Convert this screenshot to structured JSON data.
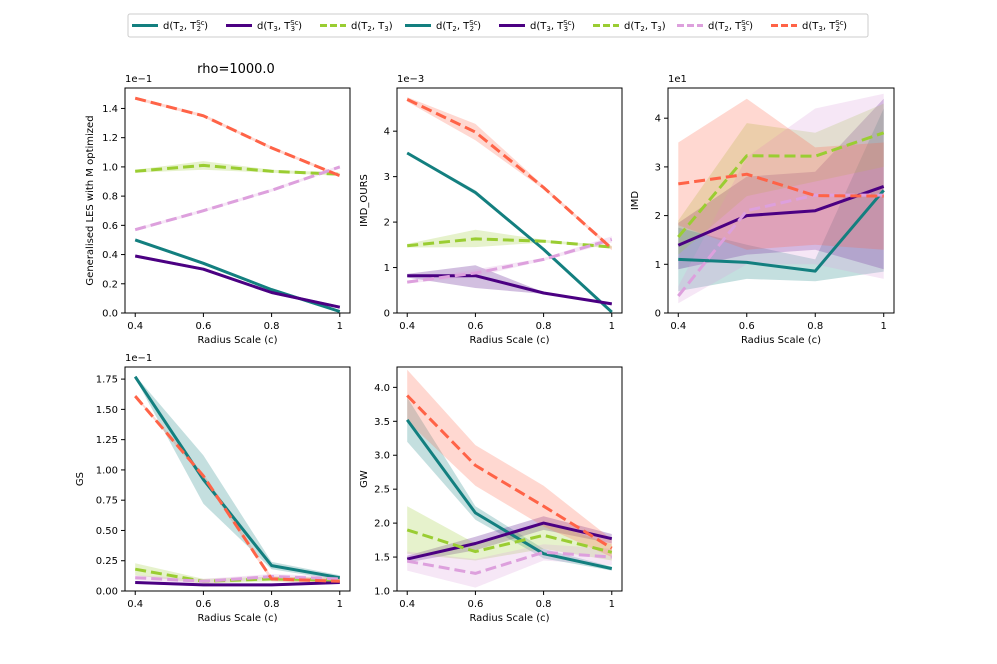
{
  "figure": {
    "suptitle": "rho=1000.0",
    "legend": [
      {
        "label_main": "d(T",
        "sub1": "2",
        "mid": ", T",
        "sub2": "2",
        "sup2": "Sc",
        "end": ")",
        "color": "#137f7f",
        "dash": "solid"
      },
      {
        "label_main": "d(T",
        "sub1": "3",
        "mid": ", T",
        "sub2": "3",
        "sup2": "Sc",
        "end": ")",
        "color": "#4b0082",
        "dash": "solid"
      },
      {
        "label_main": "d(T",
        "sub1": "2",
        "mid": ", T",
        "sub2": "3",
        "sup2": "",
        "end": ")",
        "color": "#9acd32",
        "dash": "dashed"
      },
      {
        "label_main": "d(T",
        "sub1": "2",
        "mid": ", T",
        "sub2": "2",
        "sup2": "Sc",
        "end": ")",
        "color": "#137f7f",
        "dash": "solid"
      },
      {
        "label_main": "d(T",
        "sub1": "3",
        "mid": ", T",
        "sub2": "3",
        "sup2": "Sc",
        "end": ")",
        "color": "#4b0082",
        "dash": "solid"
      },
      {
        "label_main": "d(T",
        "sub1": "2",
        "mid": ", T",
        "sub2": "3",
        "sup2": "",
        "end": ")",
        "color": "#9acd32",
        "dash": "dashed"
      },
      {
        "label_main": "d(T",
        "sub1": "2",
        "mid": ", T",
        "sub2": "3",
        "sup2": "Sc",
        "end": ")",
        "color": "#dda0dd",
        "dash": "dashed"
      },
      {
        "label_main": "d(T",
        "sub1": "3",
        "mid": ", T",
        "sub2": "2",
        "sup2": "Sc",
        "end": ")",
        "color": "#ff6347",
        "dash": "dashed"
      }
    ]
  },
  "chart_data": [
    {
      "type": "line",
      "ylabel": "Generalised LES with M optimized",
      "xlabel": "Radius Scale (c)",
      "exponent": "1e−1",
      "x": [
        0.4,
        0.6,
        0.8,
        1.0
      ],
      "xticks": [
        "0.4",
        "0.6",
        "0.8",
        "1"
      ],
      "ylim": [
        0,
        1.54
      ],
      "yticks": [
        0,
        0.2,
        0.4,
        0.6,
        0.8,
        1.0,
        1.2,
        1.4
      ],
      "ytick_labels": [
        "0.0",
        "0.2",
        "0.4",
        "0.6",
        "0.8",
        "1.0",
        "1.2",
        "1.4"
      ],
      "series": [
        {
          "name": "d(T2,T2Sc)",
          "color": "#137f7f",
          "dash": "solid",
          "values": [
            0.5,
            0.34,
            0.16,
            0.01
          ],
          "lower": [
            0.49,
            0.33,
            0.15,
            0.0
          ],
          "upper": [
            0.51,
            0.35,
            0.17,
            0.02
          ]
        },
        {
          "name": "d(T3,T3Sc)",
          "color": "#4b0082",
          "dash": "solid",
          "values": [
            0.39,
            0.3,
            0.14,
            0.04
          ],
          "lower": [
            0.38,
            0.29,
            0.13,
            0.03
          ],
          "upper": [
            0.4,
            0.31,
            0.15,
            0.05
          ]
        },
        {
          "name": "d(T2,T3)",
          "color": "#9acd32",
          "dash": "dashed",
          "values": [
            0.97,
            1.01,
            0.97,
            0.95
          ],
          "lower": [
            0.96,
            0.98,
            0.96,
            0.94
          ],
          "upper": [
            0.98,
            1.04,
            0.98,
            0.96
          ]
        },
        {
          "name": "d(T2,T3Sc)",
          "color": "#dda0dd",
          "dash": "dashed",
          "values": [
            0.57,
            0.7,
            0.84,
            1.0
          ],
          "lower": [
            0.56,
            0.69,
            0.83,
            0.99
          ],
          "upper": [
            0.58,
            0.71,
            0.85,
            1.01
          ]
        },
        {
          "name": "d(T3,T2Sc)",
          "color": "#ff6347",
          "dash": "dashed",
          "values": [
            1.47,
            1.35,
            1.13,
            0.94
          ],
          "lower": [
            1.46,
            1.34,
            1.12,
            0.93
          ],
          "upper": [
            1.48,
            1.36,
            1.14,
            0.95
          ]
        }
      ]
    },
    {
      "type": "line",
      "ylabel": "IMD_OURS",
      "xlabel": "Radius Scale (c)",
      "exponent": "1e−3",
      "x": [
        0.4,
        0.6,
        0.8,
        1.0
      ],
      "xticks": [
        "0.4",
        "0.6",
        "0.8",
        "1"
      ],
      "ylim": [
        0,
        4.95
      ],
      "yticks": [
        0,
        1,
        2,
        3,
        4
      ],
      "ytick_labels": [
        "0",
        "1",
        "2",
        "3",
        "4"
      ],
      "series": [
        {
          "name": "d(T2,T2Sc)",
          "color": "#137f7f",
          "dash": "solid",
          "values": [
            3.52,
            2.65,
            1.4,
            0.02
          ],
          "lower": [
            3.5,
            2.6,
            1.38,
            0.0
          ],
          "upper": [
            3.54,
            2.7,
            1.42,
            0.04
          ]
        },
        {
          "name": "d(T3,T3Sc)",
          "color": "#4b0082",
          "dash": "solid",
          "values": [
            0.82,
            0.82,
            0.44,
            0.2
          ],
          "lower": [
            0.78,
            0.55,
            0.42,
            0.18
          ],
          "upper": [
            0.86,
            1.05,
            0.46,
            0.22
          ]
        },
        {
          "name": "d(T2,T3)",
          "color": "#9acd32",
          "dash": "dashed",
          "values": [
            1.48,
            1.63,
            1.58,
            1.45
          ],
          "lower": [
            1.44,
            1.45,
            1.55,
            1.42
          ],
          "upper": [
            1.52,
            1.83,
            1.61,
            1.48
          ]
        },
        {
          "name": "d(T2,T3Sc)",
          "color": "#dda0dd",
          "dash": "dashed",
          "values": [
            0.68,
            0.88,
            1.18,
            1.62
          ],
          "lower": [
            0.65,
            0.8,
            1.15,
            1.55
          ],
          "upper": [
            0.71,
            0.96,
            1.21,
            1.69
          ]
        },
        {
          "name": "d(T3,T2Sc)",
          "color": "#ff6347",
          "dash": "dashed",
          "values": [
            4.7,
            3.98,
            2.76,
            1.42
          ],
          "lower": [
            4.65,
            3.8,
            2.72,
            1.38
          ],
          "upper": [
            4.75,
            4.16,
            2.8,
            1.46
          ]
        }
      ]
    },
    {
      "type": "line",
      "ylabel": "IMD",
      "xlabel": "Radius Scale (c)",
      "exponent": "1e1",
      "x": [
        0.4,
        0.6,
        0.8,
        1.0
      ],
      "xticks": [
        "0.4",
        "0.6",
        "0.8",
        "1"
      ],
      "ylim": [
        0,
        4.62
      ],
      "yticks": [
        0,
        1,
        2,
        3,
        4
      ],
      "ytick_labels": [
        "0",
        "1",
        "2",
        "3",
        "4"
      ],
      "series": [
        {
          "name": "d(T2,T2Sc)",
          "color": "#137f7f",
          "dash": "solid",
          "values": [
            1.1,
            1.04,
            0.86,
            2.52
          ],
          "lower": [
            0.45,
            0.7,
            0.65,
            0.85
          ],
          "upper": [
            1.75,
            1.4,
            1.1,
            4.2
          ]
        },
        {
          "name": "d(T3,T3Sc)",
          "color": "#4b0082",
          "dash": "solid",
          "values": [
            1.39,
            2.0,
            2.1,
            2.6
          ],
          "lower": [
            0.9,
            1.2,
            1.3,
            0.9
          ],
          "upper": [
            1.85,
            2.8,
            2.9,
            4.4
          ]
        },
        {
          "name": "d(T2,T3)",
          "color": "#9acd32",
          "dash": "dashed",
          "values": [
            1.56,
            3.23,
            3.22,
            3.7
          ],
          "lower": [
            1.2,
            2.4,
            2.7,
            3.0
          ],
          "upper": [
            1.9,
            3.9,
            3.7,
            4.3
          ]
        },
        {
          "name": "d(T2,T3Sc)",
          "color": "#dda0dd",
          "dash": "dashed",
          "values": [
            0.35,
            2.1,
            2.42,
            2.42
          ],
          "lower": [
            0.2,
            1.0,
            1.0,
            0.7
          ],
          "upper": [
            0.55,
            3.2,
            4.2,
            4.5
          ]
        },
        {
          "name": "d(T3,T2Sc)",
          "color": "#ff6347",
          "dash": "dashed",
          "values": [
            2.65,
            2.85,
            2.41,
            2.4
          ],
          "lower": [
            1.8,
            1.3,
            1.4,
            1.3
          ],
          "upper": [
            3.5,
            4.4,
            3.4,
            3.5
          ]
        }
      ]
    },
    {
      "type": "line",
      "ylabel": "GS",
      "xlabel": "Radius Scale (c)",
      "exponent": "1e−1",
      "x": [
        0.4,
        0.6,
        0.8,
        1.0
      ],
      "xticks": [
        "0.4",
        "0.6",
        "0.8",
        "1"
      ],
      "ylim": [
        0,
        1.85
      ],
      "yticks": [
        0,
        0.25,
        0.5,
        0.75,
        1.0,
        1.25,
        1.5,
        1.75
      ],
      "ytick_labels": [
        "0.00",
        "0.25",
        "0.50",
        "0.75",
        "1.00",
        "1.25",
        "1.50",
        "1.75"
      ],
      "series": [
        {
          "name": "d(T2,T2Sc)",
          "color": "#137f7f",
          "dash": "solid",
          "values": [
            1.77,
            0.92,
            0.21,
            0.11
          ],
          "lower": [
            1.76,
            0.72,
            0.18,
            0.09
          ],
          "upper": [
            1.78,
            1.12,
            0.24,
            0.13
          ]
        },
        {
          "name": "d(T3,T3Sc)",
          "color": "#4b0082",
          "dash": "solid",
          "values": [
            0.07,
            0.05,
            0.05,
            0.07
          ],
          "lower": [
            0.06,
            0.04,
            0.04,
            0.06
          ],
          "upper": [
            0.08,
            0.06,
            0.06,
            0.08
          ]
        },
        {
          "name": "d(T2,T3)",
          "color": "#9acd32",
          "dash": "dashed",
          "values": [
            0.18,
            0.08,
            0.1,
            0.09
          ],
          "lower": [
            0.13,
            0.06,
            0.08,
            0.07
          ],
          "upper": [
            0.23,
            0.1,
            0.12,
            0.11
          ]
        },
        {
          "name": "d(T2,T3Sc)",
          "color": "#dda0dd",
          "dash": "dashed",
          "values": [
            0.11,
            0.08,
            0.12,
            0.1
          ],
          "lower": [
            0.09,
            0.06,
            0.1,
            0.08
          ],
          "upper": [
            0.13,
            0.1,
            0.14,
            0.12
          ]
        },
        {
          "name": "d(T3,T2Sc)",
          "color": "#ff6347",
          "dash": "dashed",
          "values": [
            1.61,
            0.95,
            0.1,
            0.08
          ],
          "lower": [
            1.6,
            0.93,
            0.08,
            0.06
          ],
          "upper": [
            1.62,
            0.97,
            0.12,
            0.1
          ]
        }
      ]
    },
    {
      "type": "line",
      "ylabel": "GW",
      "xlabel": "Radius Scale (c)",
      "exponent": "",
      "x": [
        0.4,
        0.6,
        0.8,
        1.0
      ],
      "xticks": [
        "0.4",
        "0.6",
        "0.8",
        "1"
      ],
      "ylim": [
        1.0,
        4.3
      ],
      "yticks": [
        1.0,
        1.5,
        2.0,
        2.5,
        3.0,
        3.5,
        4.0
      ],
      "ytick_labels": [
        "1.0",
        "1.5",
        "2.0",
        "2.5",
        "3.0",
        "3.5",
        "4.0"
      ],
      "series": [
        {
          "name": "d(T2,T2Sc)",
          "color": "#137f7f",
          "dash": "solid",
          "values": [
            3.52,
            2.15,
            1.55,
            1.33
          ],
          "lower": [
            3.2,
            2.05,
            1.48,
            1.3
          ],
          "upper": [
            3.85,
            2.25,
            1.62,
            1.36
          ]
        },
        {
          "name": "d(T3,T3Sc)",
          "color": "#4b0082",
          "dash": "solid",
          "values": [
            1.47,
            1.7,
            2.0,
            1.77
          ],
          "lower": [
            1.42,
            1.6,
            1.9,
            1.7
          ],
          "upper": [
            1.52,
            1.8,
            2.1,
            1.84
          ]
        },
        {
          "name": "d(T2,T3)",
          "color": "#9acd32",
          "dash": "dashed",
          "values": [
            1.9,
            1.58,
            1.82,
            1.57
          ],
          "lower": [
            1.55,
            1.45,
            1.62,
            1.45
          ],
          "upper": [
            2.25,
            1.7,
            2.02,
            1.69
          ]
        },
        {
          "name": "d(T2,T3Sc)",
          "color": "#dda0dd",
          "dash": "dashed",
          "values": [
            1.44,
            1.26,
            1.57,
            1.5
          ],
          "lower": [
            1.3,
            1.05,
            1.45,
            1.38
          ],
          "upper": [
            1.58,
            1.47,
            1.69,
            1.62
          ]
        },
        {
          "name": "d(T3,T2Sc)",
          "color": "#ff6347",
          "dash": "dashed",
          "values": [
            3.88,
            2.85,
            2.25,
            1.63
          ],
          "lower": [
            3.5,
            2.55,
            1.95,
            1.5
          ],
          "upper": [
            4.26,
            3.15,
            2.55,
            1.76
          ]
        }
      ]
    }
  ]
}
